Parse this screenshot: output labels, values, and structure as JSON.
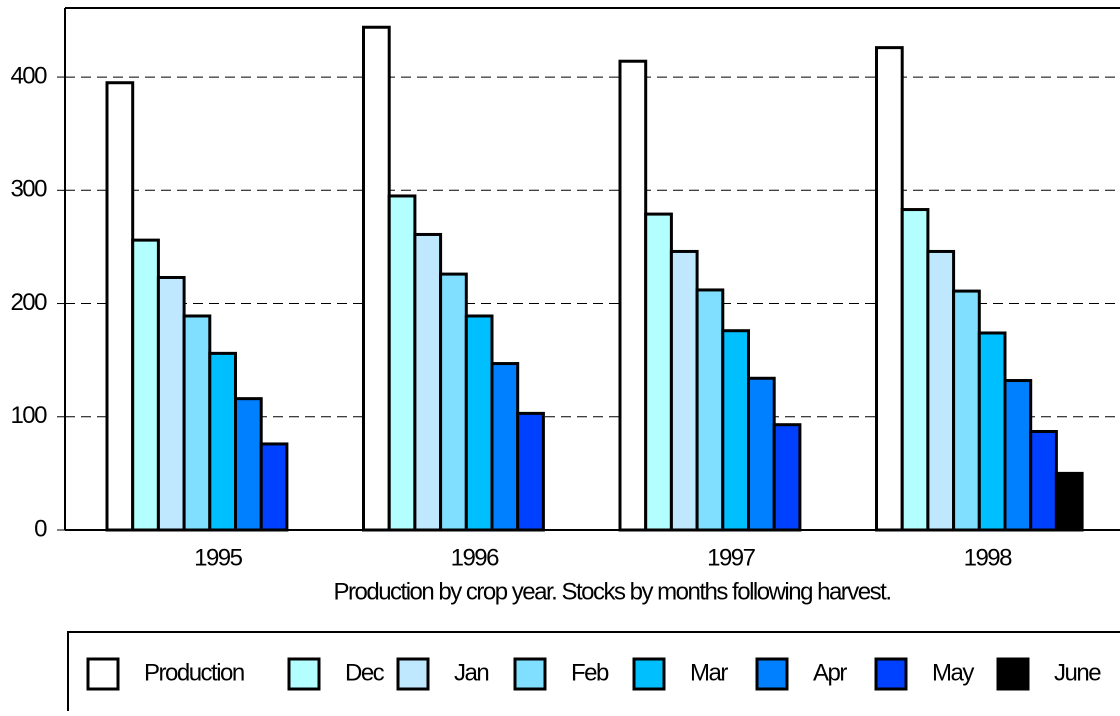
{
  "chart_data": {
    "type": "bar",
    "x_label": "Production by crop year.  Stocks by months following harvest.",
    "categories": [
      "1995",
      "1996",
      "1997",
      "1998"
    ],
    "series": [
      {
        "name": "Production",
        "color": "#ffffff",
        "values": [
          395,
          444,
          414,
          426
        ]
      },
      {
        "name": "Dec",
        "color": "#b3ffff",
        "values": [
          256,
          295,
          279,
          283
        ]
      },
      {
        "name": "Jan",
        "color": "#bfe8ff",
        "values": [
          223,
          261,
          246,
          246
        ]
      },
      {
        "name": "Feb",
        "color": "#80dfff",
        "values": [
          189,
          226,
          212,
          211
        ]
      },
      {
        "name": "Mar",
        "color": "#00bfff",
        "values": [
          156,
          189,
          176,
          174
        ]
      },
      {
        "name": "Apr",
        "color": "#0080ff",
        "values": [
          116,
          147,
          134,
          132
        ]
      },
      {
        "name": "May",
        "color": "#0040ff",
        "values": [
          76,
          103,
          93,
          87
        ]
      },
      {
        "name": "June",
        "color": "#000000",
        "values": [
          null,
          null,
          null,
          50
        ]
      }
    ],
    "ylim": [
      0,
      461
    ],
    "yticks": [
      0,
      100,
      200,
      300,
      400
    ],
    "grid": true,
    "legend": "bottom"
  }
}
